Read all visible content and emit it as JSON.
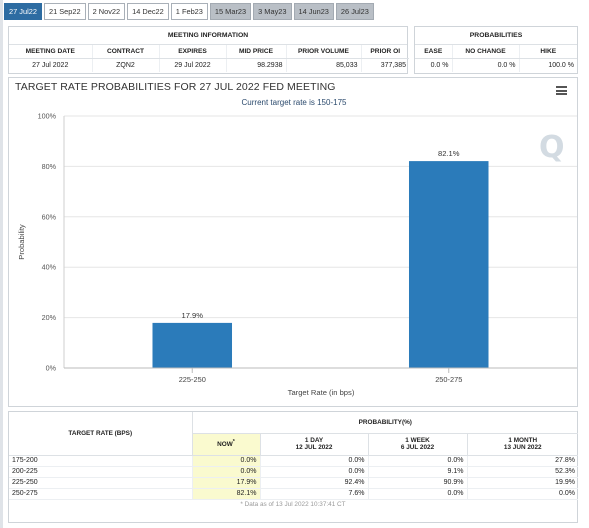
{
  "tabs": [
    {
      "label": "27 Jul22",
      "state": "active"
    },
    {
      "label": "21 Sep22",
      "state": "normal"
    },
    {
      "label": "2 Nov22",
      "state": "normal"
    },
    {
      "label": "14 Dec22",
      "state": "normal"
    },
    {
      "label": "1 Feb23",
      "state": "normal"
    },
    {
      "label": "15 Mar23",
      "state": "later"
    },
    {
      "label": "3 May23",
      "state": "later"
    },
    {
      "label": "14 Jun23",
      "state": "later"
    },
    {
      "label": "26 Jul23",
      "state": "later"
    }
  ],
  "meeting_info": {
    "title": "MEETING INFORMATION",
    "headers": [
      "MEETING DATE",
      "CONTRACT",
      "EXPIRES",
      "MID PRICE",
      "PRIOR VOLUME",
      "PRIOR OI"
    ],
    "values": [
      "27 Jul 2022",
      "ZQN2",
      "29 Jul 2022",
      "98.2938",
      "85,033",
      "377,385"
    ]
  },
  "probabilities": {
    "title": "PROBABILITIES",
    "headers": [
      "EASE",
      "NO CHANGE",
      "HIKE"
    ],
    "values": [
      "0.0 %",
      "0.0 %",
      "100.0 %"
    ]
  },
  "chart_title": "TARGET RATE PROBABILITIES FOR 27 JUL 2022 FED MEETING",
  "chart_subtitle": "Current target rate is 150-175",
  "watermark": "Q",
  "chart_data": {
    "type": "bar",
    "title": "TARGET RATE PROBABILITIES FOR 27 JUL 2022 FED MEETING",
    "subtitle": "Current target rate is 150-175",
    "categories": [
      "225-250",
      "250-275"
    ],
    "values": [
      17.9,
      82.1
    ],
    "data_labels": [
      "17.9%",
      "82.1%"
    ],
    "xlabel": "Target Rate (in bps)",
    "ylabel": "Probability",
    "ylim": [
      0,
      100
    ],
    "yticks": [
      0,
      20,
      40,
      60,
      80,
      100
    ],
    "ytick_labels": [
      "0%",
      "20%",
      "40%",
      "60%",
      "80%",
      "100%"
    ],
    "grid": true,
    "bar_color": "#2b7bba"
  },
  "bottom_table": {
    "rate_header": "TARGET RATE (BPS)",
    "prob_header": "PROBABILITY(%)",
    "columns": [
      {
        "line1": "NOW",
        "sup": "*",
        "line2": ""
      },
      {
        "line1": "1 DAY",
        "line2": "12 JUL 2022"
      },
      {
        "line1": "1 WEEK",
        "line2": "6 JUL 2022"
      },
      {
        "line1": "1 MONTH",
        "line2": "13 JUN 2022"
      }
    ],
    "rows": [
      {
        "rate": "175-200",
        "values": [
          "0.0%",
          "0.0%",
          "0.0%",
          "27.8%"
        ]
      },
      {
        "rate": "200-225",
        "values": [
          "0.0%",
          "0.0%",
          "9.1%",
          "52.3%"
        ]
      },
      {
        "rate": "225-250",
        "values": [
          "17.9%",
          "92.4%",
          "90.9%",
          "19.9%"
        ]
      },
      {
        "rate": "250-275",
        "values": [
          "82.1%",
          "7.6%",
          "0.0%",
          "0.0%"
        ]
      }
    ],
    "footnote": "* Data as of 13 Jul 2022 10:37:41 CT"
  }
}
